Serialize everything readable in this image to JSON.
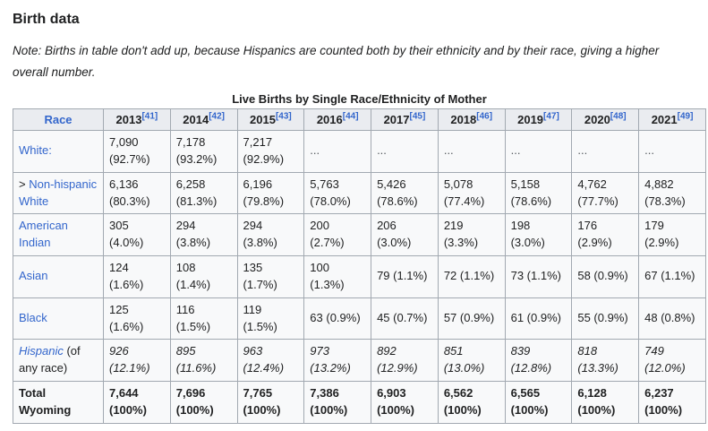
{
  "page": {
    "title": "Birth data",
    "note": "Note: Births in table don't add up, because Hispanics are counted both by their ethnicity and by their race, giving a higher overall number."
  },
  "colors": {
    "link": "#3366cc",
    "table_border": "#a2a9b1",
    "header_bg": "#eaecf0",
    "table_bg": "#f8f9fa",
    "text": "#202122"
  },
  "table": {
    "caption": "Live Births by Single Race/Ethnicity of Mother",
    "header": {
      "race_label": "Race",
      "years": [
        {
          "year": "2013",
          "ref": "[41]"
        },
        {
          "year": "2014",
          "ref": "[42]"
        },
        {
          "year": "2015",
          "ref": "[43]"
        },
        {
          "year": "2016",
          "ref": "[44]"
        },
        {
          "year": "2017",
          "ref": "[45]"
        },
        {
          "year": "2018",
          "ref": "[46]"
        },
        {
          "year": "2019",
          "ref": "[47]"
        },
        {
          "year": "2020",
          "ref": "[48]"
        },
        {
          "year": "2021",
          "ref": "[49]"
        }
      ]
    },
    "rows": [
      {
        "id": "white",
        "race": {
          "link": "White:"
        },
        "cells": [
          "7,090\n(92.7%)",
          "7,178\n(93.2%)",
          "7,217\n(92.9%)",
          "...",
          "...",
          "...",
          "...",
          "...",
          "..."
        ]
      },
      {
        "id": "non-hispanic-white",
        "race": {
          "prefix": "> ",
          "link": "Non-hispanic White"
        },
        "cells": [
          "6,136\n(80.3%)",
          "6,258\n(81.3%)",
          "6,196\n(79.8%)",
          "5,763\n(78.0%)",
          "5,426\n(78.6%)",
          "5,078\n(77.4%)",
          "5,158\n(78.6%)",
          "4,762\n(77.7%)",
          "4,882\n(78.3%)"
        ]
      },
      {
        "id": "american-indian",
        "race": {
          "link": "American Indian"
        },
        "cells": [
          "305\n(4.0%)",
          "294\n(3.8%)",
          "294\n(3.8%)",
          "200\n(2.7%)",
          "206\n(3.0%)",
          "219\n(3.3%)",
          "198\n(3.0%)",
          "176\n(2.9%)",
          "179\n(2.9%)"
        ]
      },
      {
        "id": "asian",
        "race": {
          "link": "Asian"
        },
        "cells": [
          "124\n(1.6%)",
          "108\n(1.4%)",
          "135\n(1.7%)",
          "100\n(1.3%)",
          "79 (1.1%)",
          "72 (1.1%)",
          "73 (1.1%)",
          "58 (0.9%)",
          "67 (1.1%)"
        ]
      },
      {
        "id": "black",
        "race": {
          "link": "Black"
        },
        "cells": [
          "125\n(1.6%)",
          "116 (1.5%)",
          "119 (1.5%)",
          "63 (0.9%)",
          "45 (0.7%)",
          "57 (0.9%)",
          "61 (0.9%)",
          "55 (0.9%)",
          "48 (0.8%)"
        ]
      },
      {
        "id": "hispanic",
        "race": {
          "link": "Hispanic",
          "link_italic": true,
          "suffix": " (of any race)"
        },
        "cells_italic": true,
        "cells": [
          "926\n(12.1%)",
          "895\n(11.6%)",
          "963\n(12.4%)",
          "973\n(13.2%)",
          "892\n(12.9%)",
          "851\n(13.0%)",
          "839\n(12.8%)",
          "818\n(13.3%)",
          "749\n(12.0%)"
        ]
      },
      {
        "id": "total-wyoming",
        "race": {
          "text": "Total Wyoming",
          "text_bold": true
        },
        "cells_bold": true,
        "cells": [
          "7,644\n(100%)",
          "7,696\n(100%)",
          "7,765\n(100%)",
          "7,386\n(100%)",
          "6,903\n(100%)",
          "6,562\n(100%)",
          "6,565\n(100%)",
          "6,128\n(100%)",
          "6,237\n(100%)"
        ]
      }
    ]
  }
}
